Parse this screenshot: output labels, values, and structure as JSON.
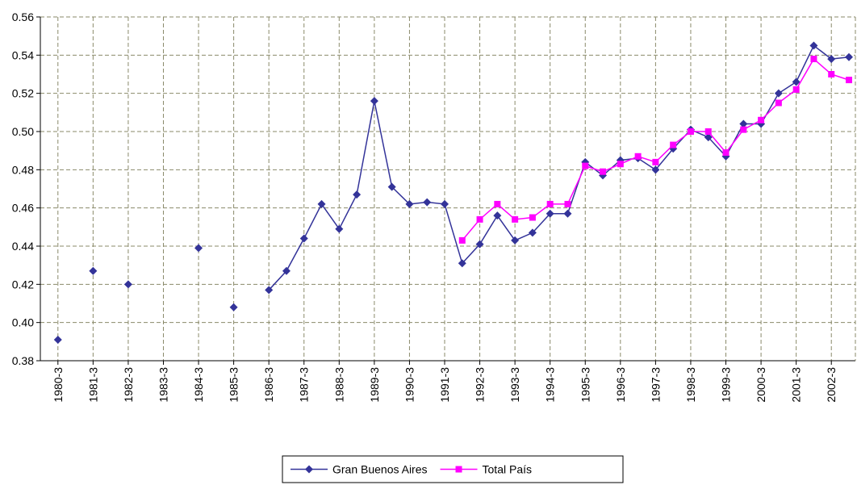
{
  "chart_data": {
    "type": "line",
    "categories": [
      null,
      "1980-3",
      null,
      "1981-3",
      null,
      "1982-3",
      null,
      "1983-3",
      null,
      "1984-3",
      null,
      "1985-3",
      null,
      "1986-3",
      null,
      "1987-3",
      null,
      "1988-3",
      null,
      "1989-3",
      null,
      "1990-3",
      null,
      "1991-3",
      null,
      "1992-3",
      null,
      "1993-3",
      null,
      "1994-3",
      null,
      "1995-3",
      null,
      "1996-3",
      null,
      "1997-3",
      null,
      "1998-3",
      null,
      "1999-3",
      null,
      "2000-3",
      null,
      "2001-3",
      null,
      "2002-3",
      null
    ],
    "series": [
      {
        "name": "Gran Buenos Aires",
        "color": "#333399",
        "marker": "diamond",
        "values": [
          null,
          0.391,
          null,
          0.427,
          null,
          0.42,
          null,
          null,
          null,
          0.439,
          null,
          0.408,
          null,
          0.417,
          0.427,
          0.444,
          0.462,
          0.449,
          0.467,
          0.516,
          0.471,
          0.462,
          0.463,
          0.462,
          0.431,
          0.441,
          0.456,
          0.443,
          0.447,
          0.457,
          0.457,
          0.484,
          0.477,
          0.485,
          0.486,
          0.48,
          0.491,
          0.501,
          0.497,
          0.487,
          0.504,
          0.504,
          0.52,
          0.526,
          0.545,
          0.538,
          0.539
        ]
      },
      {
        "name": "Total País",
        "color": "#ff00ff",
        "marker": "square",
        "values": [
          null,
          null,
          null,
          null,
          null,
          null,
          null,
          null,
          null,
          null,
          null,
          null,
          null,
          null,
          null,
          null,
          null,
          null,
          null,
          null,
          null,
          null,
          null,
          null,
          0.443,
          0.454,
          0.462,
          0.454,
          0.455,
          0.462,
          0.462,
          0.482,
          0.479,
          0.483,
          0.487,
          0.484,
          0.493,
          0.5,
          0.5,
          0.489,
          0.501,
          0.506,
          0.515,
          0.522,
          0.538,
          0.53,
          0.527
        ]
      }
    ],
    "ylim": [
      0.38,
      0.56
    ],
    "yticks": [
      {
        "value": 0.38,
        "label": "0.38"
      },
      {
        "value": 0.4,
        "label": "0.40"
      },
      {
        "value": 0.42,
        "label": "0.42"
      },
      {
        "value": 0.44,
        "label": "0.44"
      },
      {
        "value": 0.46,
        "label": "0.46"
      },
      {
        "value": 0.48,
        "label": "0.48"
      },
      {
        "value": 0.5,
        "label": "0.50"
      },
      {
        "value": 0.52,
        "label": "0.52"
      },
      {
        "value": 0.54,
        "label": "0.54"
      },
      {
        "value": 0.56,
        "label": "0.56"
      }
    ],
    "grid": true,
    "legend": "bottom"
  }
}
